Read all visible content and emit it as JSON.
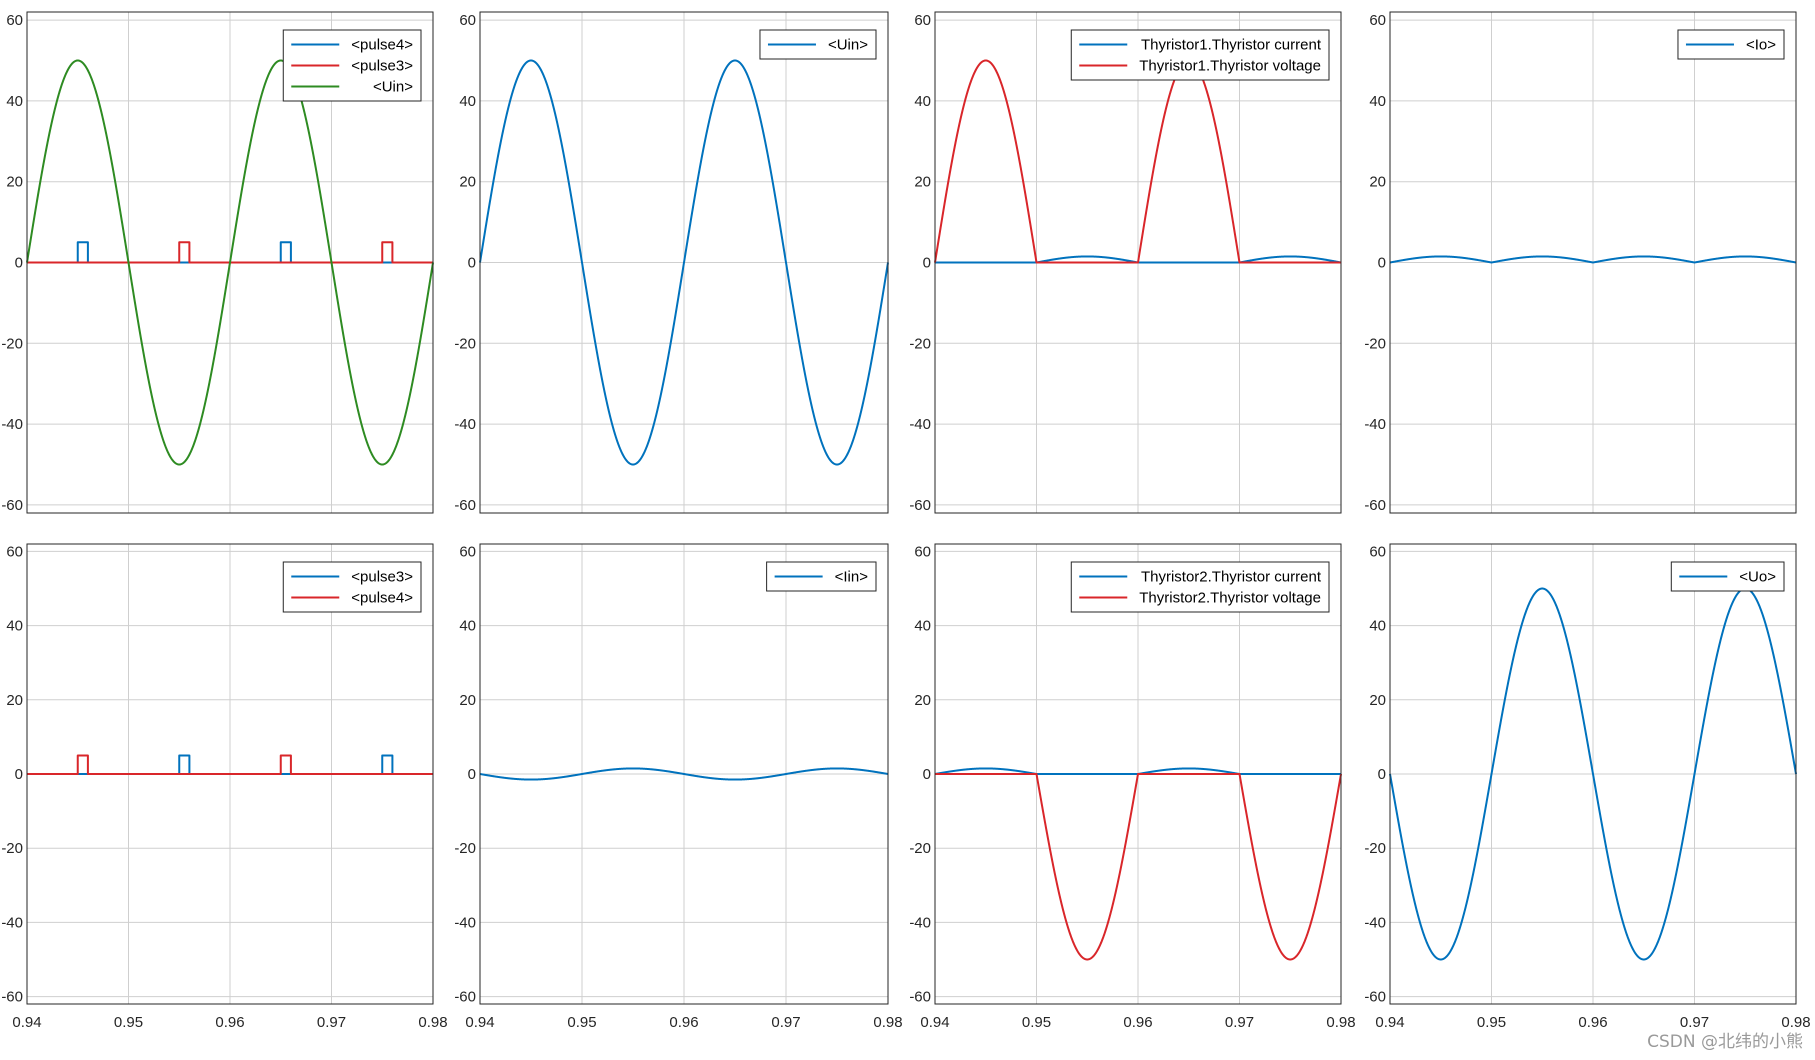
{
  "watermark": "CSDN @北纬的小熊",
  "colors": {
    "blue": "#0072BD",
    "red": "#D9262A",
    "green": "#2E8B22",
    "grid": "#cfcfcf",
    "axis": "#262626"
  },
  "chart_data": [
    {
      "type": "line",
      "panel": "row1-col1",
      "xlim": [
        0.94,
        0.98
      ],
      "ylim": [
        -62,
        62
      ],
      "grid": true,
      "x_ticks": [
        "0.94",
        "0.95",
        "0.96",
        "0.97",
        "0.98"
      ],
      "show_x_ticks": false,
      "y_ticks": [
        "60",
        "40",
        "20",
        "0",
        "-20",
        "-40",
        "-60"
      ],
      "legend_placement": "top-right",
      "series": [
        {
          "name": "<pulse4>",
          "color": "blue",
          "shape": "pulse",
          "pulses": [
            [
              0.945,
              0.946
            ],
            [
              0.965,
              0.966
            ]
          ],
          "amplitude": 5
        },
        {
          "name": "<pulse3>",
          "color": "red",
          "shape": "pulse",
          "pulses": [
            [
              0.955,
              0.956
            ],
            [
              0.975,
              0.976
            ]
          ],
          "amplitude": 5
        },
        {
          "name": "<Uin>",
          "color": "green",
          "shape": "sine",
          "amplitude": 50,
          "frequency_hz": 50
        }
      ]
    },
    {
      "type": "line",
      "panel": "row1-col2",
      "xlim": [
        0.94,
        0.98
      ],
      "ylim": [
        -62,
        62
      ],
      "grid": true,
      "x_ticks": [
        "0.94",
        "0.95",
        "0.96",
        "0.97",
        "0.98"
      ],
      "show_x_ticks": false,
      "y_ticks": [
        "60",
        "40",
        "20",
        "0",
        "-20",
        "-40",
        "-60"
      ],
      "legend_placement": "top-right",
      "series": [
        {
          "name": "<Uin>",
          "color": "blue",
          "shape": "sine",
          "amplitude": 50,
          "frequency_hz": 50
        }
      ]
    },
    {
      "type": "line",
      "panel": "row1-col3",
      "xlim": [
        0.94,
        0.98
      ],
      "ylim": [
        -62,
        62
      ],
      "grid": true,
      "x_ticks": [
        "0.94",
        "0.95",
        "0.96",
        "0.97",
        "0.98"
      ],
      "show_x_ticks": false,
      "y_ticks": [
        "60",
        "40",
        "20",
        "0",
        "-20",
        "-40",
        "-60"
      ],
      "legend_placement": "top-right",
      "series": [
        {
          "name": "Thyristor1.Thyristor current",
          "color": "blue",
          "shape": "thy_current",
          "phase": 0,
          "amplitude": 1.5
        },
        {
          "name": "Thyristor1.Thyristor voltage",
          "color": "red",
          "shape": "thy_voltage",
          "phase": 0,
          "amplitude": 50
        }
      ]
    },
    {
      "type": "line",
      "panel": "row1-col4",
      "xlim": [
        0.94,
        0.98
      ],
      "ylim": [
        -62,
        62
      ],
      "grid": true,
      "x_ticks": [
        "0.94",
        "0.95",
        "0.96",
        "0.97",
        "0.98"
      ],
      "show_x_ticks": false,
      "y_ticks": [
        "60",
        "40",
        "20",
        "0",
        "-20",
        "-40",
        "-60"
      ],
      "legend_placement": "top-right",
      "series": [
        {
          "name": "<Io>",
          "color": "blue",
          "shape": "io",
          "amplitude": 1.5
        }
      ]
    },
    {
      "type": "line",
      "panel": "row2-col1",
      "xlim": [
        0.94,
        0.98
      ],
      "ylim": [
        -62,
        62
      ],
      "grid": true,
      "x_ticks": [
        "0.94",
        "0.95",
        "0.96",
        "0.97",
        "0.98"
      ],
      "show_x_ticks": true,
      "y_ticks": [
        "60",
        "40",
        "20",
        "0",
        "-20",
        "-40",
        "-60"
      ],
      "legend_placement": "top-right",
      "series": [
        {
          "name": "<pulse3>",
          "color": "blue",
          "shape": "pulse",
          "pulses": [
            [
              0.955,
              0.956
            ],
            [
              0.975,
              0.976
            ]
          ],
          "amplitude": 5
        },
        {
          "name": "<pulse4>",
          "color": "red",
          "shape": "pulse",
          "pulses": [
            [
              0.945,
              0.946
            ],
            [
              0.965,
              0.966
            ]
          ],
          "amplitude": 5
        }
      ]
    },
    {
      "type": "line",
      "panel": "row2-col2",
      "xlim": [
        0.94,
        0.98
      ],
      "ylim": [
        -62,
        62
      ],
      "grid": true,
      "x_ticks": [
        "0.94",
        "0.95",
        "0.96",
        "0.97",
        "0.98"
      ],
      "show_x_ticks": true,
      "y_ticks": [
        "60",
        "40",
        "20",
        "0",
        "-20",
        "-40",
        "-60"
      ],
      "legend_placement": "top-right",
      "series": [
        {
          "name": "<Iin>",
          "color": "blue",
          "shape": "iin",
          "amplitude": 1.5
        }
      ]
    },
    {
      "type": "line",
      "panel": "row2-col3",
      "xlim": [
        0.94,
        0.98
      ],
      "ylim": [
        -62,
        62
      ],
      "grid": true,
      "x_ticks": [
        "0.94",
        "0.95",
        "0.96",
        "0.97",
        "0.98"
      ],
      "show_x_ticks": true,
      "y_ticks": [
        "60",
        "40",
        "20",
        "0",
        "-20",
        "-40",
        "-60"
      ],
      "legend_placement": "top-right",
      "series": [
        {
          "name": "Thyristor2.Thyristor current",
          "color": "blue",
          "shape": "thy_current",
          "phase": 1,
          "amplitude": 1.5
        },
        {
          "name": "Thyristor2.Thyristor voltage",
          "color": "red",
          "shape": "thy_voltage",
          "phase": 1,
          "amplitude": 50
        }
      ]
    },
    {
      "type": "line",
      "panel": "row2-col4",
      "xlim": [
        0.94,
        0.98
      ],
      "ylim": [
        -62,
        62
      ],
      "grid": true,
      "x_ticks": [
        "0.94",
        "0.95",
        "0.96",
        "0.97",
        "0.98"
      ],
      "show_x_ticks": true,
      "y_ticks": [
        "60",
        "40",
        "20",
        "0",
        "-20",
        "-40",
        "-60"
      ],
      "legend_placement": "top-right",
      "series": [
        {
          "name": "<Uo>",
          "color": "blue",
          "shape": "uo",
          "amplitude": 50
        }
      ]
    }
  ]
}
